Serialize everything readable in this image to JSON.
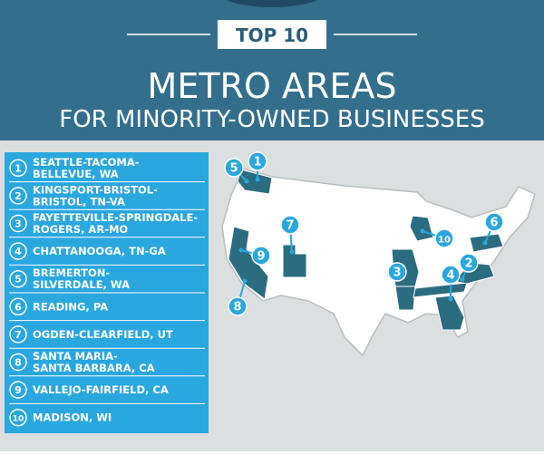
{
  "header": {
    "badge": "TOP 10",
    "title": "METRO AREAS",
    "subtitle": "FOR MINORITY-OWNED BUSINESSES"
  },
  "list": {
    "items": [
      {
        "rank": 1,
        "lines": [
          "SEATTLE-TACOMA-",
          "BELLEVUE, WA"
        ]
      },
      {
        "rank": 2,
        "lines": [
          "KINGSPORT-BRISTOL-",
          "BRISTOL, TN-VA"
        ]
      },
      {
        "rank": 3,
        "lines": [
          "FAYETTEVILLE-SPRINGDALE-",
          "ROGERS, AR-MO"
        ]
      },
      {
        "rank": 4,
        "lines": [
          "CHATTANOOGA, TN-GA"
        ]
      },
      {
        "rank": 5,
        "lines": [
          "BREMERTON-",
          "SILVERDALE, WA"
        ]
      },
      {
        "rank": 6,
        "lines": [
          "READING, PA"
        ]
      },
      {
        "rank": 7,
        "lines": [
          "OGDEN-CLEARFIELD, UT"
        ]
      },
      {
        "rank": 8,
        "lines": [
          "SANTA MARIA-",
          "SANTA BARBARA, CA"
        ]
      },
      {
        "rank": 9,
        "lines": [
          "VALLEJO-FAIRFIELD, CA"
        ]
      },
      {
        "rank": 10,
        "lines": [
          "MADISON, WI"
        ]
      }
    ]
  }
}
